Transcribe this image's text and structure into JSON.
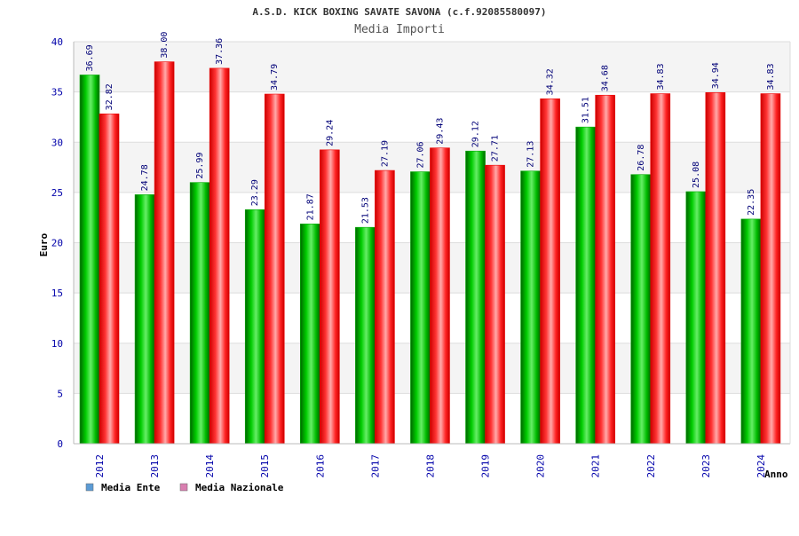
{
  "chart_data": {
    "type": "bar",
    "title": "A.S.D. KICK BOXING SAVATE SAVONA (c.f.92085580097)",
    "subtitle": "Media Importi",
    "ylabel": "Euro",
    "xlabel": "Anno",
    "ylim": [
      0,
      40
    ],
    "yticks": [
      0,
      5,
      10,
      15,
      20,
      25,
      30,
      35,
      40
    ],
    "grid": true,
    "legend_position": "bottom-left",
    "categories": [
      "2012",
      "2013",
      "2014",
      "2015",
      "2016",
      "2017",
      "2018",
      "2019",
      "2020",
      "2021",
      "2022",
      "2023",
      "2024"
    ],
    "series": [
      {
        "name": "Media Ente",
        "color": "#00aa00",
        "legend_color": "#5b9bd5",
        "values": [
          36.69,
          24.78,
          25.99,
          23.29,
          21.87,
          21.53,
          27.06,
          29.12,
          27.13,
          31.51,
          26.78,
          25.08,
          22.35
        ],
        "labels": [
          "36.69",
          "24.78",
          "25.99",
          "23.29",
          "21.87",
          "21.53",
          "27.06",
          "29.12",
          "27.13",
          "31.51",
          "26.78",
          "25.08",
          "22.35"
        ]
      },
      {
        "name": "Media Nazionale",
        "color": "#ee0000",
        "legend_color": "#d97fb0",
        "values": [
          32.82,
          38.0,
          37.36,
          34.79,
          29.24,
          27.19,
          29.43,
          27.71,
          34.32,
          34.68,
          34.83,
          34.94,
          34.83
        ],
        "labels": [
          "32.82",
          "38.00",
          "37.36",
          "34.79",
          "29.24",
          "27.19",
          "29.43",
          "27.71",
          "34.32",
          "34.68",
          "34.83",
          "34.94",
          "34.83"
        ]
      }
    ]
  }
}
